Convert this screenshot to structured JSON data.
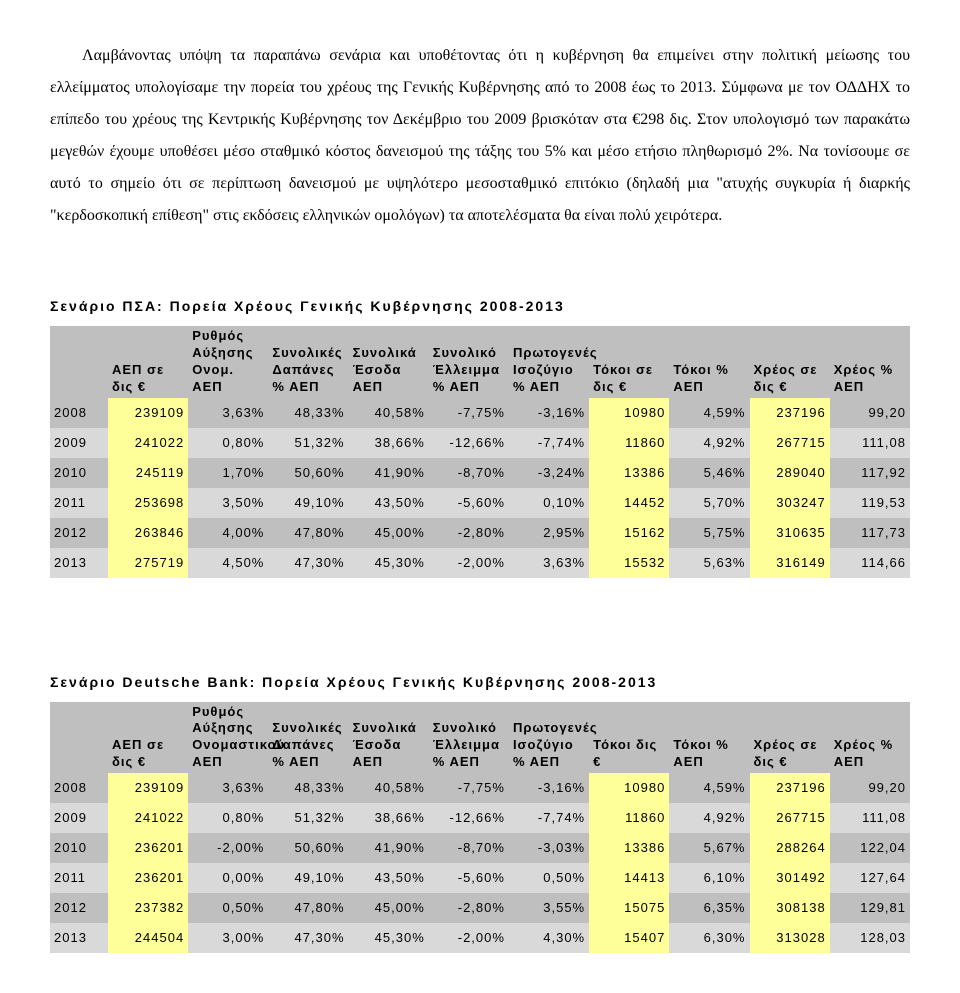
{
  "paragraph": "Λαμβάνοντας υπόψη τα παραπάνω σενάρια και υποθέτοντας ότι η κυβέρνηση θα επιμείνει στην πολιτική μείωσης του ελλείμματος υπολογίσαμε την πορεία του χρέους της Γενικής Κυβέρνησης από το 2008 έως το 2013. Σύμφωνα με τον ΟΔΔΗΧ το επίπεδο του χρέους της Κεντρικής Κυβέρνησης τον Δεκέμβριο του 2009 βρισκόταν στα €298 δις. Στον υπολογισμό των παρακάτω μεγεθών έχουμε υποθέσει μέσο σταθμικό κόστος δανεισμού της τάξης του 5% και μέσο ετήσιο πληθωρισμό 2%. Να τονίσουμε σε αυτό το σημείο ότι σε περίπτωση δανεισμού με υψηλότερο μεσοσταθμικό επιτόκιο (δηλαδή μια \"ατυχής συγκυρία ή διαρκής \"κερδοσκοπική επίθεση\" στις εκδόσεις ελληνικών ομολόγων) τα αποτελέσματα θα είναι πολύ χειρότερα.",
  "tables": [
    {
      "title": "Σενάριο ΠΣΑ: Πορεία Χρέους Γενικής Κυβέρνησης 2008-2013",
      "headers": [
        "",
        "ΑΕΠ σε δις €",
        "Ρυθμός Αύξησης Ονομ. ΑΕΠ",
        "Συνολικές Δαπάνες % ΑΕΠ",
        "Συνολικά Έσοδα ΑΕΠ",
        "Συνολικό Έλλειμμα % ΑΕΠ",
        "Πρωτογενές Ισοζύγιο % ΑΕΠ",
        "Τόκοι σε δις €",
        "Τόκοι % ΑΕΠ",
        "Χρέος σε δις €",
        "Χρέος % ΑΕΠ"
      ],
      "rows": [
        {
          "year": "2008",
          "gdp": "239109",
          "growth": "3,63%",
          "exp": "48,33%",
          "rev": "40,58%",
          "def": "-7,75%",
          "prim": "-3,16%",
          "intB": "10980",
          "intP": "4,59%",
          "debtB": "237196",
          "debtP": "99,20",
          "cls": "row-a"
        },
        {
          "year": "2009",
          "gdp": "241022",
          "growth": "0,80%",
          "exp": "51,32%",
          "rev": "38,66%",
          "def": "-12,66%",
          "prim": "-7,74%",
          "intB": "11860",
          "intP": "4,92%",
          "debtB": "267715",
          "debtP": "111,08",
          "cls": "row-b"
        },
        {
          "year": "2010",
          "gdp": "245119",
          "growth": "1,70%",
          "exp": "50,60%",
          "rev": "41,90%",
          "def": "-8,70%",
          "prim": "-3,24%",
          "intB": "13386",
          "intP": "5,46%",
          "debtB": "289040",
          "debtP": "117,92",
          "cls": "row-a"
        },
        {
          "year": "2011",
          "gdp": "253698",
          "growth": "3,50%",
          "exp": "49,10%",
          "rev": "43,50%",
          "def": "-5,60%",
          "prim": "0,10%",
          "intB": "14452",
          "intP": "5,70%",
          "debtB": "303247",
          "debtP": "119,53",
          "cls": "row-b"
        },
        {
          "year": "2012",
          "gdp": "263846",
          "growth": "4,00%",
          "exp": "47,80%",
          "rev": "45,00%",
          "def": "-2,80%",
          "prim": "2,95%",
          "intB": "15162",
          "intP": "5,75%",
          "debtB": "310635",
          "debtP": "117,73",
          "cls": "row-a"
        },
        {
          "year": "2013",
          "gdp": "275719",
          "growth": "4,50%",
          "exp": "47,30%",
          "rev": "45,30%",
          "def": "-2,00%",
          "prim": "3,63%",
          "intB": "15532",
          "intP": "5,63%",
          "debtB": "316149",
          "debtP": "114,66",
          "cls": "row-b"
        }
      ]
    },
    {
      "title": "Σενάριο Deutsche Bank: Πορεία Χρέους Γενικής Κυβέρνησης 2008-2013",
      "headers": [
        "",
        "ΑΕΠ σε δις €",
        "Ρυθμός Αύξησης Ονομαστικού ΑΕΠ",
        "Συνολικές Δαπάνες % ΑΕΠ",
        "Συνολικά Έσοδα ΑΕΠ",
        "Συνολικό Έλλειμμα % ΑΕΠ",
        "Πρωτογενές Ισοζύγιο % ΑΕΠ",
        "Τόκοι δις €",
        "Τόκοι % ΑΕΠ",
        "Χρέος σε δις €",
        "Χρέος % ΑΕΠ"
      ],
      "rows": [
        {
          "year": "2008",
          "gdp": "239109",
          "growth": "3,63%",
          "exp": "48,33%",
          "rev": "40,58%",
          "def": "-7,75%",
          "prim": "-3,16%",
          "intB": "10980",
          "intP": "4,59%",
          "debtB": "237196",
          "debtP": "99,20",
          "cls": "row-a"
        },
        {
          "year": "2009",
          "gdp": "241022",
          "growth": "0,80%",
          "exp": "51,32%",
          "rev": "38,66%",
          "def": "-12,66%",
          "prim": "-7,74%",
          "intB": "11860",
          "intP": "4,92%",
          "debtB": "267715",
          "debtP": "111,08",
          "cls": "row-b"
        },
        {
          "year": "2010",
          "gdp": "236201",
          "growth": "-2,00%",
          "exp": "50,60%",
          "rev": "41,90%",
          "def": "-8,70%",
          "prim": "-3,03%",
          "intB": "13386",
          "intP": "5,67%",
          "debtB": "288264",
          "debtP": "122,04",
          "cls": "row-a"
        },
        {
          "year": "2011",
          "gdp": "236201",
          "growth": "0,00%",
          "exp": "49,10%",
          "rev": "43,50%",
          "def": "-5,60%",
          "prim": "0,50%",
          "intB": "14413",
          "intP": "6,10%",
          "debtB": "301492",
          "debtP": "127,64",
          "cls": "row-b"
        },
        {
          "year": "2012",
          "gdp": "237382",
          "growth": "0,50%",
          "exp": "47,80%",
          "rev": "45,00%",
          "def": "-2,80%",
          "prim": "3,55%",
          "intB": "15075",
          "intP": "6,35%",
          "debtB": "308138",
          "debtP": "129,81",
          "cls": "row-a"
        },
        {
          "year": "2013",
          "gdp": "244504",
          "growth": "3,00%",
          "exp": "47,30%",
          "rev": "45,30%",
          "def": "-2,00%",
          "prim": "4,30%",
          "intB": "15407",
          "intP": "6,30%",
          "debtB": "313028",
          "debtP": "128,03",
          "cls": "row-b"
        }
      ]
    }
  ],
  "highlight_cols": [
    "gdp",
    "intB",
    "debtB"
  ]
}
